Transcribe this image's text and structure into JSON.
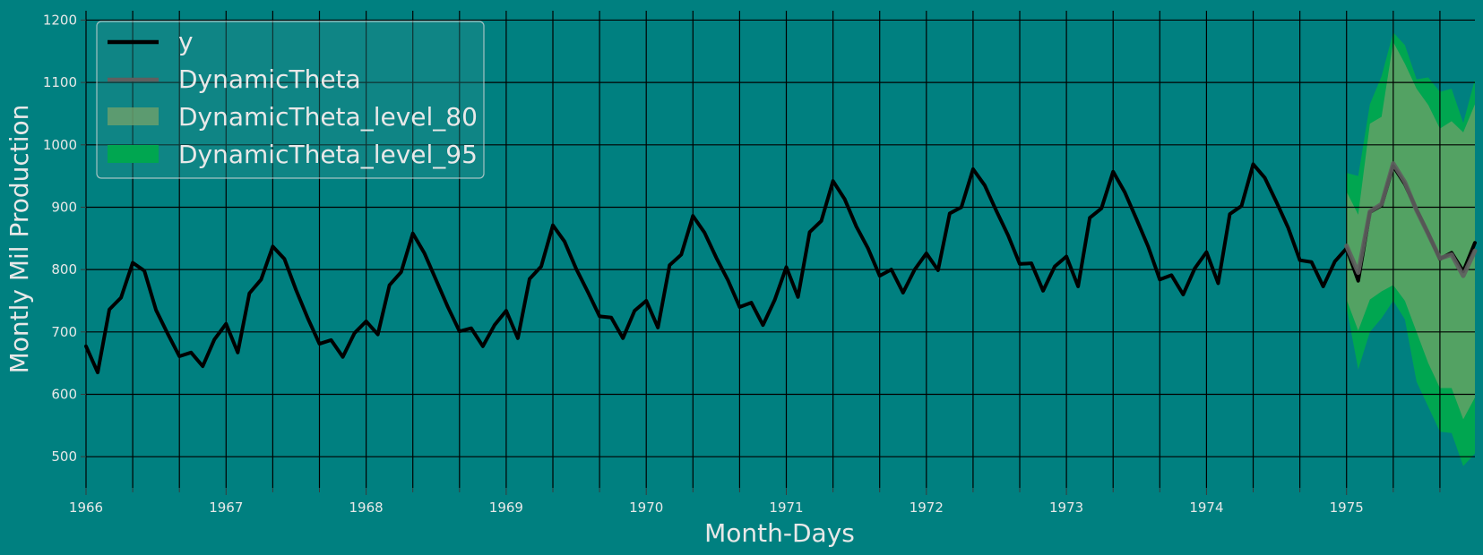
{
  "chart_data": {
    "type": "line",
    "title": "",
    "xlabel": "Month-Days",
    "ylabel": "Montly Mil Production",
    "x_ticks": [
      1966,
      1967,
      1968,
      1969,
      1970,
      1971,
      1972,
      1973,
      1974,
      1975
    ],
    "x_tick_labels": [
      "1966",
      "1967",
      "1968",
      "1969",
      "1970",
      "1971",
      "1972",
      "1973",
      "1974",
      "1975"
    ],
    "y_ticks": [
      500,
      600,
      700,
      800,
      900,
      1000,
      1100,
      1200
    ],
    "y_tick_labels": [
      "500",
      "600",
      "700",
      "800",
      "900",
      "1000",
      "1100",
      "1200"
    ],
    "xlim": [
      1966.0,
      1975.9167
    ],
    "ylim": [
      450,
      1215
    ],
    "grid": true,
    "legend_position": "top-left",
    "legend": [
      "y",
      "DynamicTheta",
      "DynamicTheta_level_80",
      "DynamicTheta_level_95"
    ],
    "colors": {
      "background": "#008080",
      "y": "#000000",
      "forecast": "#5f5f5f",
      "band80": "#6fa06a",
      "band95": "#00a650",
      "grid": "#000000",
      "text": "#e8e8e8"
    },
    "series": [
      {
        "name": "y",
        "type": "line",
        "start": "1966-01",
        "values": [
          677,
          635,
          736,
          755,
          811,
          798,
          735,
          697,
          661,
          667,
          645,
          688,
          713,
          667,
          762,
          784,
          837,
          817,
          767,
          722,
          681,
          687,
          660,
          698,
          717,
          696,
          775,
          796,
          858,
          826,
          783,
          740,
          701,
          706,
          677,
          711,
          734,
          690,
          785,
          805,
          871,
          845,
          801,
          764,
          725,
          723,
          690,
          734,
          750,
          707,
          807,
          824,
          886,
          859,
          819,
          783,
          740,
          747,
          711,
          751,
          804,
          756,
          860,
          878,
          942,
          913,
          869,
          834,
          790,
          800,
          763,
          800,
          826,
          799,
          890,
          900,
          961,
          935,
          894,
          855,
          809,
          810,
          766,
          805,
          821,
          773,
          883,
          898,
          957,
          924,
          881,
          837,
          784,
          791,
          760,
          802,
          828,
          778,
          889,
          902,
          969,
          947,
          908,
          867,
          815,
          812,
          773,
          813,
          834,
          782,
          892,
          903,
          966,
          937,
          896,
          858,
          817,
          827,
          797,
          843
        ]
      },
      {
        "name": "DynamicTheta",
        "type": "line",
        "start": "1975-01",
        "values": [
          838,
          795,
          893,
          905,
          970,
          940,
          895,
          857,
          818,
          824,
          790,
          830
        ]
      },
      {
        "name": "DynamicTheta_level_80",
        "type": "band",
        "start": "1975-01",
        "lo": [
          752,
          702,
          752,
          765,
          775,
          750,
          700,
          650,
          610,
          610,
          560,
          595
        ],
        "hi": [
          925,
          888,
          1034,
          1045,
          1165,
          1130,
          1090,
          1064,
          1026,
          1038,
          1020,
          1065
        ]
      },
      {
        "name": "DynamicTheta_level_95",
        "type": "band",
        "start": "1975-01",
        "lo": [
          740,
          640,
          700,
          722,
          750,
          720,
          620,
          580,
          540,
          538,
          485,
          505
        ],
        "hi": [
          955,
          950,
          1065,
          1110,
          1180,
          1160,
          1105,
          1108,
          1085,
          1090,
          1035,
          1105
        ]
      }
    ]
  }
}
